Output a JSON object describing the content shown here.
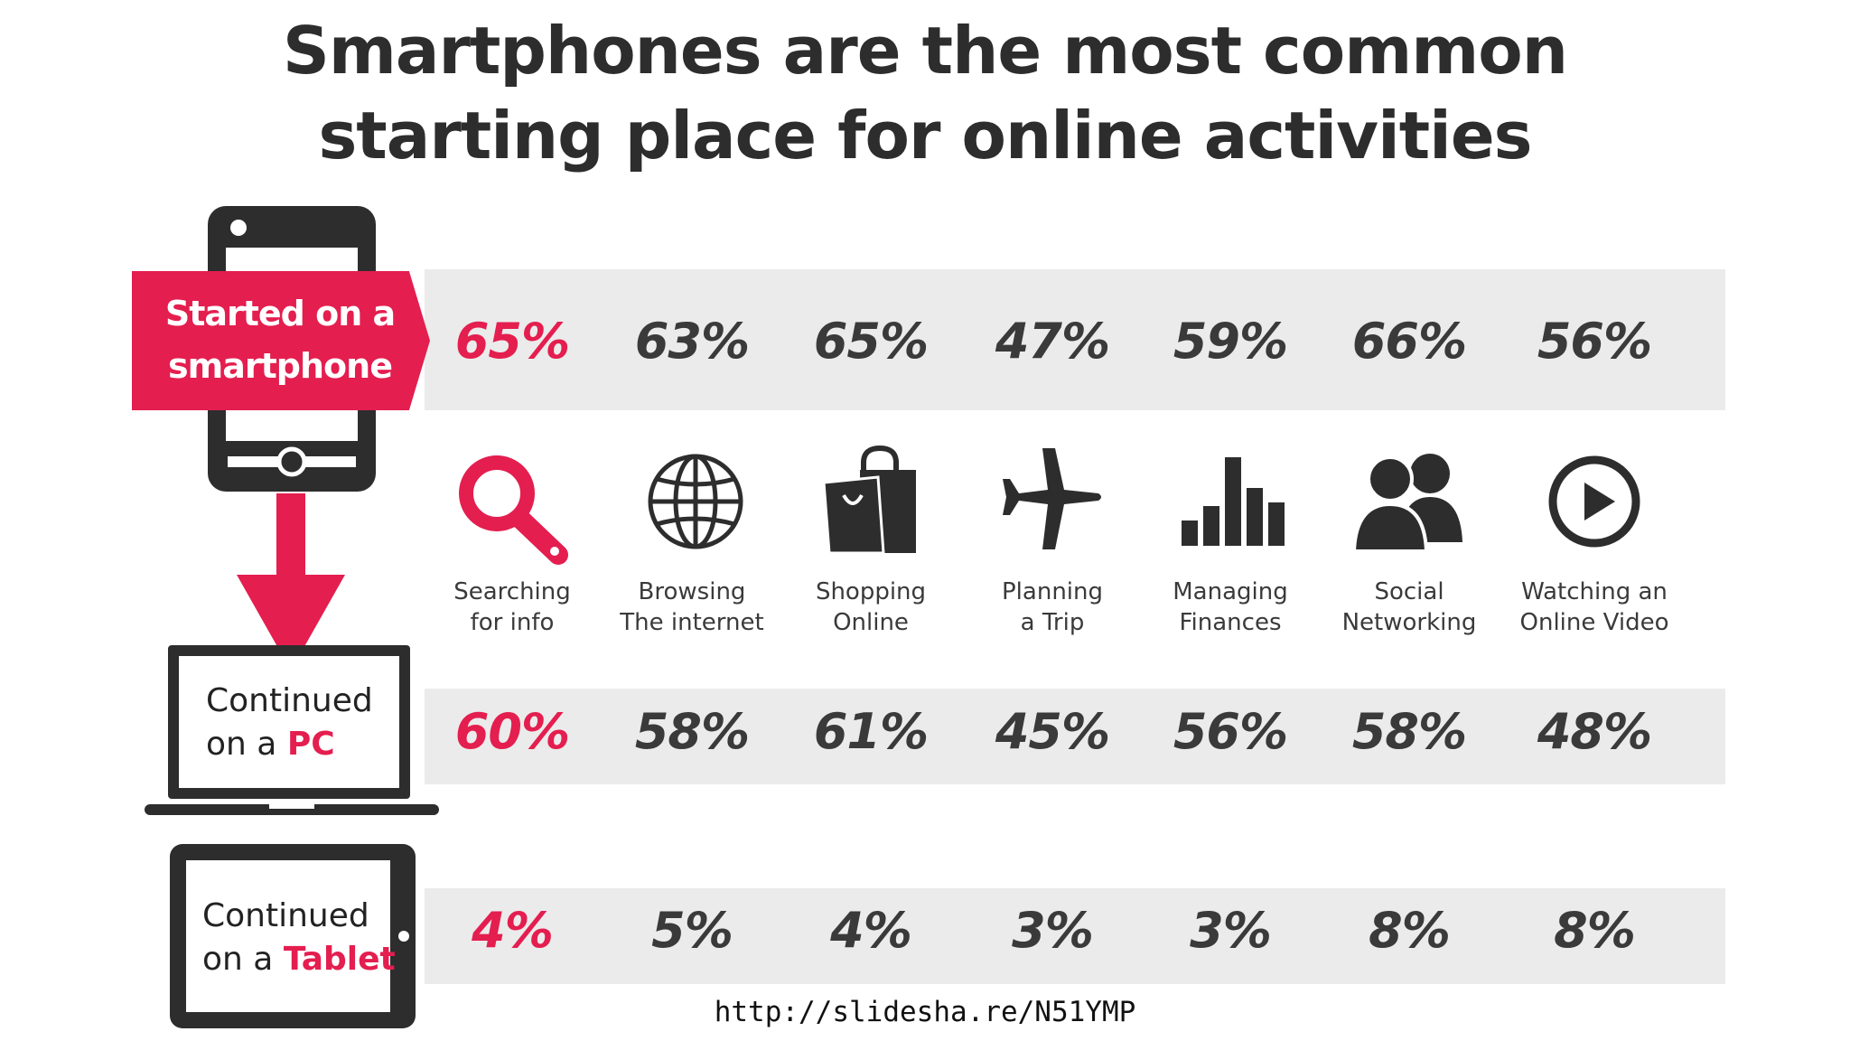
{
  "title_line1": "Smartphones are the most common",
  "title_line2": "starting place for online activities",
  "rows": {
    "started": {
      "text": "Started on a smartphone"
    },
    "pc": {
      "prefix": "Continued",
      "on": "on a",
      "device": "PC"
    },
    "tablet": {
      "prefix": "Continued",
      "on": "on a",
      "device": "Tablet"
    }
  },
  "chart_data": {
    "type": "table",
    "title": "Smartphones are the most common starting place for online activities",
    "categories": [
      [
        "Searching",
        "for info"
      ],
      [
        "Browsing",
        "The internet"
      ],
      [
        "Shopping",
        "Online"
      ],
      [
        "Planning",
        "a Trip"
      ],
      [
        "Managing",
        "Finances"
      ],
      [
        "Social",
        "Networking"
      ],
      [
        "Watching an",
        "Online Video"
      ]
    ],
    "series": [
      {
        "name": "Started on a smartphone",
        "values": [
          "65%",
          "63%",
          "65%",
          "47%",
          "59%",
          "66%",
          "56%"
        ]
      },
      {
        "name": "Continued on a PC",
        "values": [
          "60%",
          "58%",
          "61%",
          "45%",
          "56%",
          "58%",
          "48%"
        ]
      },
      {
        "name": "Continued on a Tablet",
        "values": [
          "4%",
          "5%",
          "4%",
          "3%",
          "3%",
          "8%",
          "8%"
        ]
      }
    ],
    "icons": [
      "search-icon",
      "globe-icon",
      "shopping-bag-icon",
      "airplane-icon",
      "bar-chart-icon",
      "people-icon",
      "play-icon"
    ]
  },
  "colors": {
    "accent": "#e41e4f",
    "dark": "#333333",
    "band": "#ebebeb"
  },
  "url": "http://slidesha.re/N51YMP"
}
